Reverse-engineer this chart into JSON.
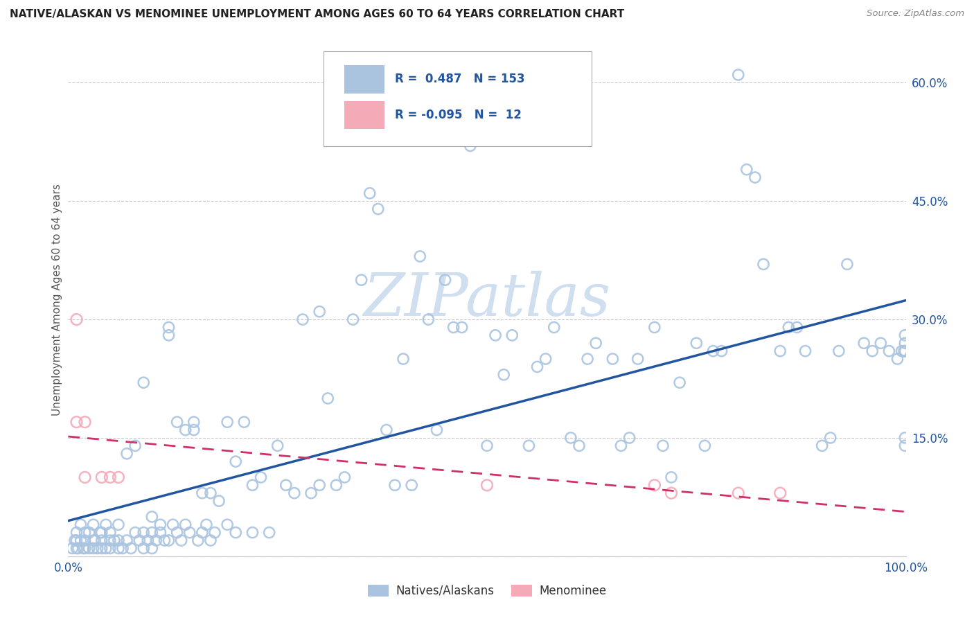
{
  "title": "NATIVE/ALASKAN VS MENOMINEE UNEMPLOYMENT AMONG AGES 60 TO 64 YEARS CORRELATION CHART",
  "source": "Source: ZipAtlas.com",
  "ylabel": "Unemployment Among Ages 60 to 64 years",
  "xlim": [
    0.0,
    1.0
  ],
  "ylim": [
    0.0,
    0.65
  ],
  "y_ticks": [
    0.0,
    0.15,
    0.3,
    0.45,
    0.6
  ],
  "y_tick_labels": [
    "",
    "15.0%",
    "30.0%",
    "45.0%",
    "60.0%"
  ],
  "x_ticks": [
    0.0,
    0.25,
    0.5,
    0.75,
    1.0
  ],
  "x_tick_labels": [
    "0.0%",
    "",
    "",
    "",
    "100.0%"
  ],
  "blue_R": 0.487,
  "blue_N": 153,
  "pink_R": -0.095,
  "pink_N": 12,
  "blue_color": "#aac4e0",
  "blue_line_color": "#2255a0",
  "pink_color": "#f5aab8",
  "pink_line_color": "#d0306a",
  "background_color": "#ffffff",
  "grid_color": "#c8c8c8",
  "watermark_color": "#d0dff0",
  "legend_text_color": "#2255a0",
  "blue_x": [
    0.005,
    0.008,
    0.01,
    0.01,
    0.01,
    0.012,
    0.015,
    0.015,
    0.018,
    0.02,
    0.02,
    0.02,
    0.025,
    0.025,
    0.03,
    0.03,
    0.03,
    0.032,
    0.035,
    0.038,
    0.04,
    0.04,
    0.04,
    0.045,
    0.045,
    0.05,
    0.05,
    0.05,
    0.055,
    0.06,
    0.06,
    0.06,
    0.065,
    0.07,
    0.07,
    0.075,
    0.08,
    0.08,
    0.085,
    0.09,
    0.09,
    0.09,
    0.095,
    0.1,
    0.1,
    0.1,
    0.105,
    0.11,
    0.11,
    0.115,
    0.12,
    0.12,
    0.12,
    0.125,
    0.13,
    0.13,
    0.135,
    0.14,
    0.14,
    0.145,
    0.15,
    0.15,
    0.155,
    0.16,
    0.16,
    0.165,
    0.17,
    0.17,
    0.175,
    0.18,
    0.19,
    0.19,
    0.2,
    0.2,
    0.21,
    0.22,
    0.22,
    0.23,
    0.24,
    0.25,
    0.26,
    0.27,
    0.28,
    0.29,
    0.3,
    0.3,
    0.31,
    0.32,
    0.33,
    0.34,
    0.35,
    0.36,
    0.37,
    0.38,
    0.39,
    0.4,
    0.41,
    0.42,
    0.43,
    0.44,
    0.45,
    0.46,
    0.47,
    0.48,
    0.5,
    0.51,
    0.52,
    0.53,
    0.55,
    0.56,
    0.57,
    0.58,
    0.6,
    0.61,
    0.62,
    0.63,
    0.65,
    0.66,
    0.67,
    0.68,
    0.7,
    0.71,
    0.72,
    0.73,
    0.75,
    0.76,
    0.77,
    0.78,
    0.8,
    0.81,
    0.82,
    0.83,
    0.85,
    0.86,
    0.87,
    0.88,
    0.9,
    0.91,
    0.92,
    0.93,
    0.95,
    0.96,
    0.97,
    0.98,
    0.99,
    0.995,
    0.998,
    0.999,
    0.999,
    0.999,
    0.999,
    0.999,
    0.999
  ],
  "blue_y": [
    0.01,
    0.02,
    0.01,
    0.03,
    0.02,
    0.01,
    0.02,
    0.04,
    0.01,
    0.02,
    0.03,
    0.01,
    0.01,
    0.03,
    0.02,
    0.01,
    0.04,
    0.02,
    0.01,
    0.03,
    0.01,
    0.02,
    0.03,
    0.01,
    0.04,
    0.02,
    0.01,
    0.03,
    0.02,
    0.01,
    0.02,
    0.04,
    0.01,
    0.02,
    0.13,
    0.01,
    0.03,
    0.14,
    0.02,
    0.01,
    0.03,
    0.22,
    0.02,
    0.03,
    0.05,
    0.01,
    0.02,
    0.03,
    0.04,
    0.02,
    0.28,
    0.29,
    0.02,
    0.04,
    0.03,
    0.17,
    0.02,
    0.04,
    0.16,
    0.03,
    0.16,
    0.17,
    0.02,
    0.03,
    0.08,
    0.04,
    0.08,
    0.02,
    0.03,
    0.07,
    0.17,
    0.04,
    0.12,
    0.03,
    0.17,
    0.09,
    0.03,
    0.1,
    0.03,
    0.14,
    0.09,
    0.08,
    0.3,
    0.08,
    0.31,
    0.09,
    0.2,
    0.09,
    0.1,
    0.3,
    0.35,
    0.46,
    0.44,
    0.16,
    0.09,
    0.25,
    0.09,
    0.38,
    0.3,
    0.16,
    0.35,
    0.29,
    0.29,
    0.52,
    0.14,
    0.28,
    0.23,
    0.28,
    0.14,
    0.24,
    0.25,
    0.29,
    0.15,
    0.14,
    0.25,
    0.27,
    0.25,
    0.14,
    0.15,
    0.25,
    0.29,
    0.14,
    0.1,
    0.22,
    0.27,
    0.14,
    0.26,
    0.26,
    0.61,
    0.49,
    0.48,
    0.37,
    0.26,
    0.29,
    0.29,
    0.26,
    0.14,
    0.15,
    0.26,
    0.37,
    0.27,
    0.26,
    0.27,
    0.26,
    0.25,
    0.26,
    0.26,
    0.27,
    0.28,
    0.26,
    0.14,
    0.15,
    0.26
  ],
  "pink_x": [
    0.01,
    0.01,
    0.02,
    0.02,
    0.04,
    0.05,
    0.06,
    0.5,
    0.7,
    0.72,
    0.8,
    0.85
  ],
  "pink_y": [
    0.3,
    0.17,
    0.17,
    0.1,
    0.1,
    0.1,
    0.1,
    0.09,
    0.09,
    0.08,
    0.08,
    0.08
  ]
}
